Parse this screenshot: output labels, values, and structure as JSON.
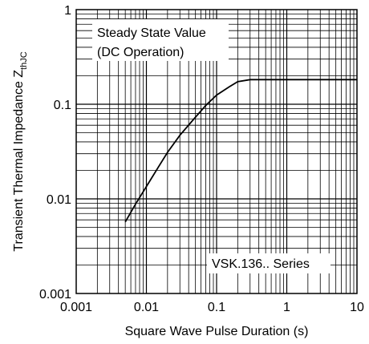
{
  "chart_data": {
    "type": "line",
    "xlabel": "Square Wave Pulse Duration (s)",
    "ylabel_main": "Transient Thermal Impedance Z",
    "ylabel_sub": "thJC",
    "x_scale": "log",
    "y_scale": "log",
    "xlim": [
      0.001,
      10
    ],
    "ylim": [
      0.001,
      1
    ],
    "x_ticks": [
      {
        "value": 0.001,
        "label": "0.001"
      },
      {
        "value": 0.01,
        "label": "0.01"
      },
      {
        "value": 0.1,
        "label": "0.1"
      },
      {
        "value": 1,
        "label": "1"
      },
      {
        "value": 10,
        "label": "10"
      }
    ],
    "y_ticks": [
      {
        "value": 0.001,
        "label": "0.001"
      },
      {
        "value": 0.01,
        "label": "0.01"
      },
      {
        "value": 0.1,
        "label": "0.1"
      },
      {
        "value": 1,
        "label": "1"
      }
    ],
    "grid": true,
    "series": [
      {
        "x": [
          0.005,
          0.007,
          0.01,
          0.015,
          0.02,
          0.03,
          0.05,
          0.07,
          0.1,
          0.15,
          0.2,
          0.3,
          0.5,
          1,
          2,
          5,
          10
        ],
        "y": [
          0.0057,
          0.0088,
          0.0135,
          0.022,
          0.031,
          0.047,
          0.073,
          0.097,
          0.125,
          0.152,
          0.173,
          0.182,
          0.182,
          0.182,
          0.182,
          0.182,
          0.182
        ],
        "color": "#000000"
      }
    ],
    "annotations": [
      {
        "text": "Steady State Value"
      },
      {
        "text": "(DC Operation)"
      },
      {
        "text": "VSK.136.. Series"
      }
    ]
  }
}
